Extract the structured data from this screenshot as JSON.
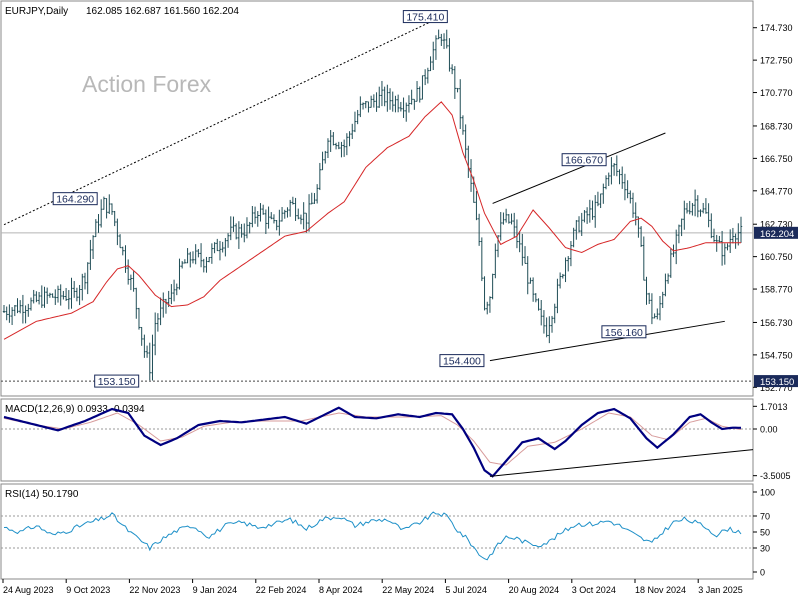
{
  "header": {
    "symbol_info": "EURJPY,Daily",
    "ohlc": "162.085 162.687 161.560 162.204",
    "watermark": "Action Forex"
  },
  "colors": {
    "bar": "#1f4d56",
    "ma": "#d62728",
    "macd": "#000080",
    "signal": "#d79b9b",
    "rsi": "#1e90c8",
    "grid": "#c0c0c0",
    "label_bg": "#1a2a5a"
  },
  "chart_data": [
    {
      "type": "ohlc",
      "panel": "price",
      "title": "EURJPY,Daily",
      "ylim": [
        152.3,
        176.3
      ],
      "yticks": [
        "174.730",
        "172.750",
        "170.770",
        "168.730",
        "166.750",
        "164.770",
        "162.730",
        "160.750",
        "158.770",
        "156.730",
        "154.750",
        "152.770"
      ],
      "xlabels": [
        "24 Aug 2023",
        "9 Oct 2023",
        "22 Nov 2023",
        "9 Jan 2024",
        "22 Feb 2024",
        "8 Apr 2024",
        "22 May 2024",
        "5 Jul 2024",
        "20 Aug 2024",
        "3 Oct 2024",
        "18 Nov 2024",
        "3 Jan 2025"
      ],
      "close_keypoints": [
        [
          0,
          157.4
        ],
        [
          10,
          157.9
        ],
        [
          16,
          158.3
        ],
        [
          26,
          158.4
        ],
        [
          30,
          159.6
        ],
        [
          33,
          162.0
        ],
        [
          37,
          164.0
        ],
        [
          40,
          163.5
        ],
        [
          44,
          161.0
        ],
        [
          48,
          158.6
        ],
        [
          52,
          155.0
        ],
        [
          54,
          154.0
        ],
        [
          56,
          156.7
        ],
        [
          60,
          158.0
        ],
        [
          62,
          158.3
        ],
        [
          66,
          160.2
        ],
        [
          70,
          160.8
        ],
        [
          74,
          160.5
        ],
        [
          78,
          161.2
        ],
        [
          84,
          162.2
        ],
        [
          90,
          162.4
        ],
        [
          94,
          163.6
        ],
        [
          100,
          162.6
        ],
        [
          106,
          164.0
        ],
        [
          112,
          163.1
        ],
        [
          116,
          164.8
        ],
        [
          120,
          168.2
        ],
        [
          126,
          167.5
        ],
        [
          132,
          169.8
        ],
        [
          140,
          170.5
        ],
        [
          148,
          170.1
        ],
        [
          154,
          170.8
        ],
        [
          158,
          173.0
        ],
        [
          162,
          174.3
        ],
        [
          164,
          173.2
        ],
        [
          168,
          170.6
        ],
        [
          170,
          168.2
        ],
        [
          173,
          165.0
        ],
        [
          176,
          161.7
        ],
        [
          178,
          157.8
        ],
        [
          180,
          158.4
        ],
        [
          182,
          161.5
        ],
        [
          185,
          163.0
        ],
        [
          188,
          162.8
        ],
        [
          192,
          160.8
        ],
        [
          196,
          158.2
        ],
        [
          199,
          156.8
        ],
        [
          201,
          156.3
        ],
        [
          204,
          158.0
        ],
        [
          208,
          160.6
        ],
        [
          212,
          162.5
        ],
        [
          216,
          163.3
        ],
        [
          220,
          163.8
        ],
        [
          224,
          166.0
        ],
        [
          226,
          166.2
        ],
        [
          230,
          165.2
        ],
        [
          234,
          163.2
        ],
        [
          236,
          161.0
        ],
        [
          238,
          158.5
        ],
        [
          240,
          157.2
        ],
        [
          242,
          157.0
        ],
        [
          245,
          159.5
        ],
        [
          248,
          161.0
        ],
        [
          252,
          163.5
        ],
        [
          256,
          164.2
        ],
        [
          260,
          163.3
        ],
        [
          264,
          161.5
        ],
        [
          267,
          161.0
        ],
        [
          270,
          162.3
        ],
        [
          273,
          162.2
        ]
      ],
      "ma_keypoints": [
        [
          0,
          155.7
        ],
        [
          12,
          156.8
        ],
        [
          25,
          157.3
        ],
        [
          33,
          158.0
        ],
        [
          38,
          159.2
        ],
        [
          42,
          160.0
        ],
        [
          46,
          160.2
        ],
        [
          50,
          159.6
        ],
        [
          56,
          158.4
        ],
        [
          62,
          157.7
        ],
        [
          68,
          157.8
        ],
        [
          74,
          158.3
        ],
        [
          80,
          159.3
        ],
        [
          88,
          160.2
        ],
        [
          96,
          161.1
        ],
        [
          104,
          162.0
        ],
        [
          112,
          162.3
        ],
        [
          120,
          163.4
        ],
        [
          126,
          164.1
        ],
        [
          134,
          166.2
        ],
        [
          142,
          167.4
        ],
        [
          150,
          168.1
        ],
        [
          156,
          169.3
        ],
        [
          162,
          170.2
        ],
        [
          166,
          169.4
        ],
        [
          170,
          167.1
        ],
        [
          174,
          165.4
        ],
        [
          178,
          163.4
        ],
        [
          184,
          161.5
        ],
        [
          190,
          162.0
        ],
        [
          196,
          163.6
        ],
        [
          202,
          162.5
        ],
        [
          208,
          161.3
        ],
        [
          214,
          161.0
        ],
        [
          220,
          161.5
        ],
        [
          226,
          161.8
        ],
        [
          232,
          162.9
        ],
        [
          236,
          163.1
        ],
        [
          240,
          162.6
        ],
        [
          244,
          161.7
        ],
        [
          248,
          161.1
        ],
        [
          254,
          161.3
        ],
        [
          260,
          161.6
        ],
        [
          266,
          161.6
        ],
        [
          273,
          161.6
        ]
      ],
      "ma_label": "",
      "level_labels": [
        {
          "text": "175.410",
          "value": 175.41,
          "index": 162
        },
        {
          "text": "164.290",
          "value": 164.29,
          "index": 36
        },
        {
          "text": "153.150",
          "value": 153.15,
          "index": 51
        },
        {
          "text": "154.400",
          "value": 154.4,
          "index": 180
        },
        {
          "text": "166.670",
          "value": 166.67,
          "index": 226
        },
        {
          "text": "156.160",
          "value": 156.16,
          "index": 240
        }
      ],
      "current_price_label": "162.204",
      "support_label": "153.150",
      "trendlines": [
        {
          "style": "dashed",
          "from": [
            0,
            162.7
          ],
          "to": [
            162,
            175.4
          ]
        },
        {
          "style": "solid",
          "from": [
            180,
            154.4
          ],
          "to": [
            267,
            156.8
          ]
        },
        {
          "style": "solid",
          "from": [
            181,
            164.0
          ],
          "to": [
            245,
            168.3
          ]
        }
      ],
      "horizontal_lines": [
        {
          "style": "dashed",
          "value": 153.15
        },
        {
          "style": "solid",
          "value": 162.204
        }
      ]
    },
    {
      "type": "line",
      "panel": "macd",
      "title": "MACD(12,26,9) 0.0933 -0.0394",
      "ylim": [
        -3.75,
        2.1
      ],
      "yticks": [
        "1.7013",
        "0.00",
        "-3.5005"
      ],
      "series": [
        {
          "name": "",
          "keypoints": [
            [
              0,
              0.9
            ],
            [
              10,
              0.4
            ],
            [
              20,
              -0.1
            ],
            [
              30,
              0.6
            ],
            [
              40,
              1.5
            ],
            [
              46,
              1.2
            ],
            [
              52,
              -0.5
            ],
            [
              58,
              -1.2
            ],
            [
              64,
              -0.7
            ],
            [
              72,
              0.3
            ],
            [
              80,
              0.6
            ],
            [
              88,
              0.5
            ],
            [
              96,
              0.7
            ],
            [
              104,
              0.9
            ],
            [
              112,
              0.4
            ],
            [
              118,
              1.0
            ],
            [
              124,
              1.6
            ],
            [
              130,
              0.9
            ],
            [
              138,
              0.8
            ],
            [
              146,
              1.1
            ],
            [
              154,
              0.9
            ],
            [
              160,
              1.2
            ],
            [
              166,
              1.1
            ],
            [
              170,
              0.0
            ],
            [
              174,
              -1.4
            ],
            [
              178,
              -3.1
            ],
            [
              181,
              -3.55
            ],
            [
              186,
              -2.4
            ],
            [
              192,
              -1.0
            ],
            [
              198,
              -0.7
            ],
            [
              204,
              -1.5
            ],
            [
              208,
              -0.9
            ],
            [
              214,
              0.3
            ],
            [
              220,
              1.2
            ],
            [
              226,
              1.5
            ],
            [
              232,
              0.8
            ],
            [
              238,
              -0.7
            ],
            [
              242,
              -1.4
            ],
            [
              248,
              -0.4
            ],
            [
              254,
              0.9
            ],
            [
              258,
              1.1
            ],
            [
              262,
              0.5
            ],
            [
              266,
              0.0
            ],
            [
              270,
              0.1
            ],
            [
              273,
              0.09
            ]
          ]
        },
        {
          "name": "",
          "keypoints": [
            [
              0,
              0.8
            ],
            [
              12,
              0.3
            ],
            [
              22,
              0.0
            ],
            [
              32,
              0.5
            ],
            [
              42,
              1.2
            ],
            [
              50,
              0.3
            ],
            [
              58,
              -0.9
            ],
            [
              66,
              -0.6
            ],
            [
              74,
              0.2
            ],
            [
              84,
              0.5
            ],
            [
              96,
              0.6
            ],
            [
              110,
              0.6
            ],
            [
              124,
              1.2
            ],
            [
              134,
              0.9
            ],
            [
              150,
              0.9
            ],
            [
              162,
              1.0
            ],
            [
              168,
              0.3
            ],
            [
              174,
              -0.9
            ],
            [
              180,
              -2.5
            ],
            [
              186,
              -2.7
            ],
            [
              194,
              -1.3
            ],
            [
              204,
              -1.0
            ],
            [
              214,
              0.0
            ],
            [
              224,
              1.2
            ],
            [
              232,
              0.9
            ],
            [
              240,
              -0.5
            ],
            [
              246,
              -0.8
            ],
            [
              254,
              0.5
            ],
            [
              260,
              0.8
            ],
            [
              266,
              0.2
            ],
            [
              273,
              -0.04
            ]
          ]
        }
      ],
      "zero_line": 0
    },
    {
      "type": "line",
      "panel": "rsi",
      "title": "RSI(14) 50.1790",
      "ylim": [
        0,
        100
      ],
      "yticks": [
        "100",
        "70",
        "50",
        "30",
        "0"
      ],
      "levels": [
        70,
        30
      ],
      "keypoints": [
        [
          0,
          56
        ],
        [
          6,
          50
        ],
        [
          12,
          58
        ],
        [
          18,
          46
        ],
        [
          24,
          52
        ],
        [
          30,
          60
        ],
        [
          36,
          66
        ],
        [
          40,
          72
        ],
        [
          44,
          58
        ],
        [
          48,
          46
        ],
        [
          52,
          36
        ],
        [
          54,
          30
        ],
        [
          58,
          40
        ],
        [
          64,
          52
        ],
        [
          70,
          58
        ],
        [
          76,
          44
        ],
        [
          82,
          58
        ],
        [
          88,
          62
        ],
        [
          94,
          56
        ],
        [
          100,
          60
        ],
        [
          106,
          66
        ],
        [
          112,
          54
        ],
        [
          118,
          66
        ],
        [
          124,
          70
        ],
        [
          130,
          58
        ],
        [
          136,
          64
        ],
        [
          142,
          66
        ],
        [
          148,
          52
        ],
        [
          154,
          62
        ],
        [
          160,
          74
        ],
        [
          164,
          70
        ],
        [
          168,
          52
        ],
        [
          172,
          40
        ],
        [
          176,
          22
        ],
        [
          179,
          16
        ],
        [
          182,
          30
        ],
        [
          186,
          44
        ],
        [
          190,
          42
        ],
        [
          194,
          36
        ],
        [
          198,
          34
        ],
        [
          202,
          38
        ],
        [
          206,
          48
        ],
        [
          212,
          60
        ],
        [
          218,
          60
        ],
        [
          224,
          64
        ],
        [
          228,
          58
        ],
        [
          232,
          50
        ],
        [
          236,
          42
        ],
        [
          240,
          36
        ],
        [
          244,
          50
        ],
        [
          248,
          62
        ],
        [
          252,
          66
        ],
        [
          256,
          62
        ],
        [
          260,
          56
        ],
        [
          264,
          46
        ],
        [
          268,
          54
        ],
        [
          273,
          50
        ]
      ]
    }
  ]
}
